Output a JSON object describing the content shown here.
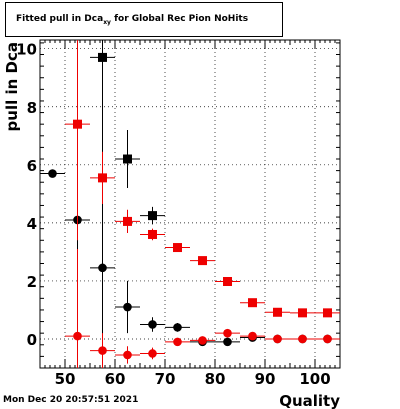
{
  "title": {
    "prefix": "Fitted pull in Dca",
    "subscript": "xy",
    "suffix": " for Global Rec Pion NoHits"
  },
  "timestamp": "Mon Dec 20 20:57:51 2021",
  "chart_data": {
    "type": "scatter",
    "xlabel": "Quality",
    "ylabel": "pull in Dca",
    "xlim": [
      45,
      105
    ],
    "ylim": [
      -1,
      10.3
    ],
    "x_ticks": [
      50,
      60,
      70,
      80,
      90,
      100
    ],
    "y_ticks": [
      0,
      2,
      4,
      6,
      8,
      10
    ],
    "grid": true,
    "series": [
      {
        "color": "#000000",
        "marker": "square",
        "points": [
          {
            "x": 57.5,
            "y": 9.7,
            "yerr": 6.0,
            "xerr": 2.5
          },
          {
            "x": 62.5,
            "y": 6.2,
            "yerr": 1.0,
            "xerr": 2.5
          },
          {
            "x": 67.5,
            "y": 4.25,
            "yerr": 0.3,
            "xerr": 2.5
          }
        ]
      },
      {
        "color": "#000000",
        "marker": "circle",
        "points": [
          {
            "x": 47.5,
            "y": 5.7,
            "yerr": 0.0,
            "xerr": 2.5
          },
          {
            "x": 52.5,
            "y": 4.1,
            "yerr": 6.0,
            "xerr": 2.5
          },
          {
            "x": 57.5,
            "y": 2.45,
            "yerr": 3.0,
            "xerr": 2.5
          },
          {
            "x": 62.5,
            "y": 1.1,
            "yerr": 0.9,
            "xerr": 2.5
          },
          {
            "x": 67.5,
            "y": 0.5,
            "yerr": 0.25,
            "xerr": 2.5
          },
          {
            "x": 72.5,
            "y": 0.4,
            "yerr": 0.15,
            "xerr": 2.5
          },
          {
            "x": 77.5,
            "y": -0.1,
            "yerr": 0.1,
            "xerr": 2.5
          },
          {
            "x": 82.5,
            "y": -0.1,
            "yerr": 0.08,
            "xerr": 2.5
          },
          {
            "x": 87.5,
            "y": 0.05,
            "yerr": 0.06,
            "xerr": 2.5
          },
          {
            "x": 92.5,
            "y": 0.0,
            "yerr": 0.05,
            "xerr": 2.5
          },
          {
            "x": 97.5,
            "y": 0.0,
            "yerr": 0.04,
            "xerr": 2.5
          },
          {
            "x": 102.5,
            "y": 0.0,
            "yerr": 0.04,
            "xerr": 2.5
          }
        ]
      },
      {
        "color": "#ee0000",
        "marker": "square",
        "points": [
          {
            "x": 52.5,
            "y": 7.4,
            "yerr": 4.0,
            "xerr": 2.5
          },
          {
            "x": 57.5,
            "y": 5.55,
            "yerr": 0.9,
            "xerr": 2.5
          },
          {
            "x": 62.5,
            "y": 4.05,
            "yerr": 0.4,
            "xerr": 2.5
          },
          {
            "x": 67.5,
            "y": 3.6,
            "yerr": 0.2,
            "xerr": 2.5
          },
          {
            "x": 72.5,
            "y": 3.15,
            "yerr": 0.12,
            "xerr": 2.5
          },
          {
            "x": 77.5,
            "y": 2.7,
            "yerr": 0.1,
            "xerr": 2.5
          },
          {
            "x": 82.5,
            "y": 1.98,
            "yerr": 0.07,
            "xerr": 2.5
          },
          {
            "x": 87.5,
            "y": 1.25,
            "yerr": 0.06,
            "xerr": 2.5
          },
          {
            "x": 92.5,
            "y": 0.92,
            "yerr": 0.05,
            "xerr": 2.5
          },
          {
            "x": 97.5,
            "y": 0.9,
            "yerr": 0.04,
            "xerr": 2.5
          },
          {
            "x": 102.5,
            "y": 0.9,
            "yerr": 0.04,
            "xerr": 2.5
          }
        ]
      },
      {
        "color": "#ee0000",
        "marker": "circle",
        "points": [
          {
            "x": 52.5,
            "y": 0.1,
            "yerr": 3.0,
            "xerr": 2.5
          },
          {
            "x": 57.5,
            "y": -0.4,
            "yerr": 0.6,
            "xerr": 2.5
          },
          {
            "x": 62.5,
            "y": -0.55,
            "yerr": 0.3,
            "xerr": 2.5
          },
          {
            "x": 67.5,
            "y": -0.5,
            "yerr": 0.2,
            "xerr": 2.5
          },
          {
            "x": 72.5,
            "y": -0.1,
            "yerr": 0.1,
            "xerr": 2.5
          },
          {
            "x": 77.5,
            "y": -0.05,
            "yerr": 0.07,
            "xerr": 2.5
          },
          {
            "x": 82.5,
            "y": 0.2,
            "yerr": 0.06,
            "xerr": 2.5
          },
          {
            "x": 87.5,
            "y": 0.1,
            "yerr": 0.05,
            "xerr": 2.5
          },
          {
            "x": 92.5,
            "y": 0.0,
            "yerr": 0.04,
            "xerr": 2.5
          },
          {
            "x": 97.5,
            "y": 0.0,
            "yerr": 0.04,
            "xerr": 2.5
          },
          {
            "x": 102.5,
            "y": 0.0,
            "yerr": 0.04,
            "xerr": 2.5
          }
        ]
      }
    ]
  }
}
